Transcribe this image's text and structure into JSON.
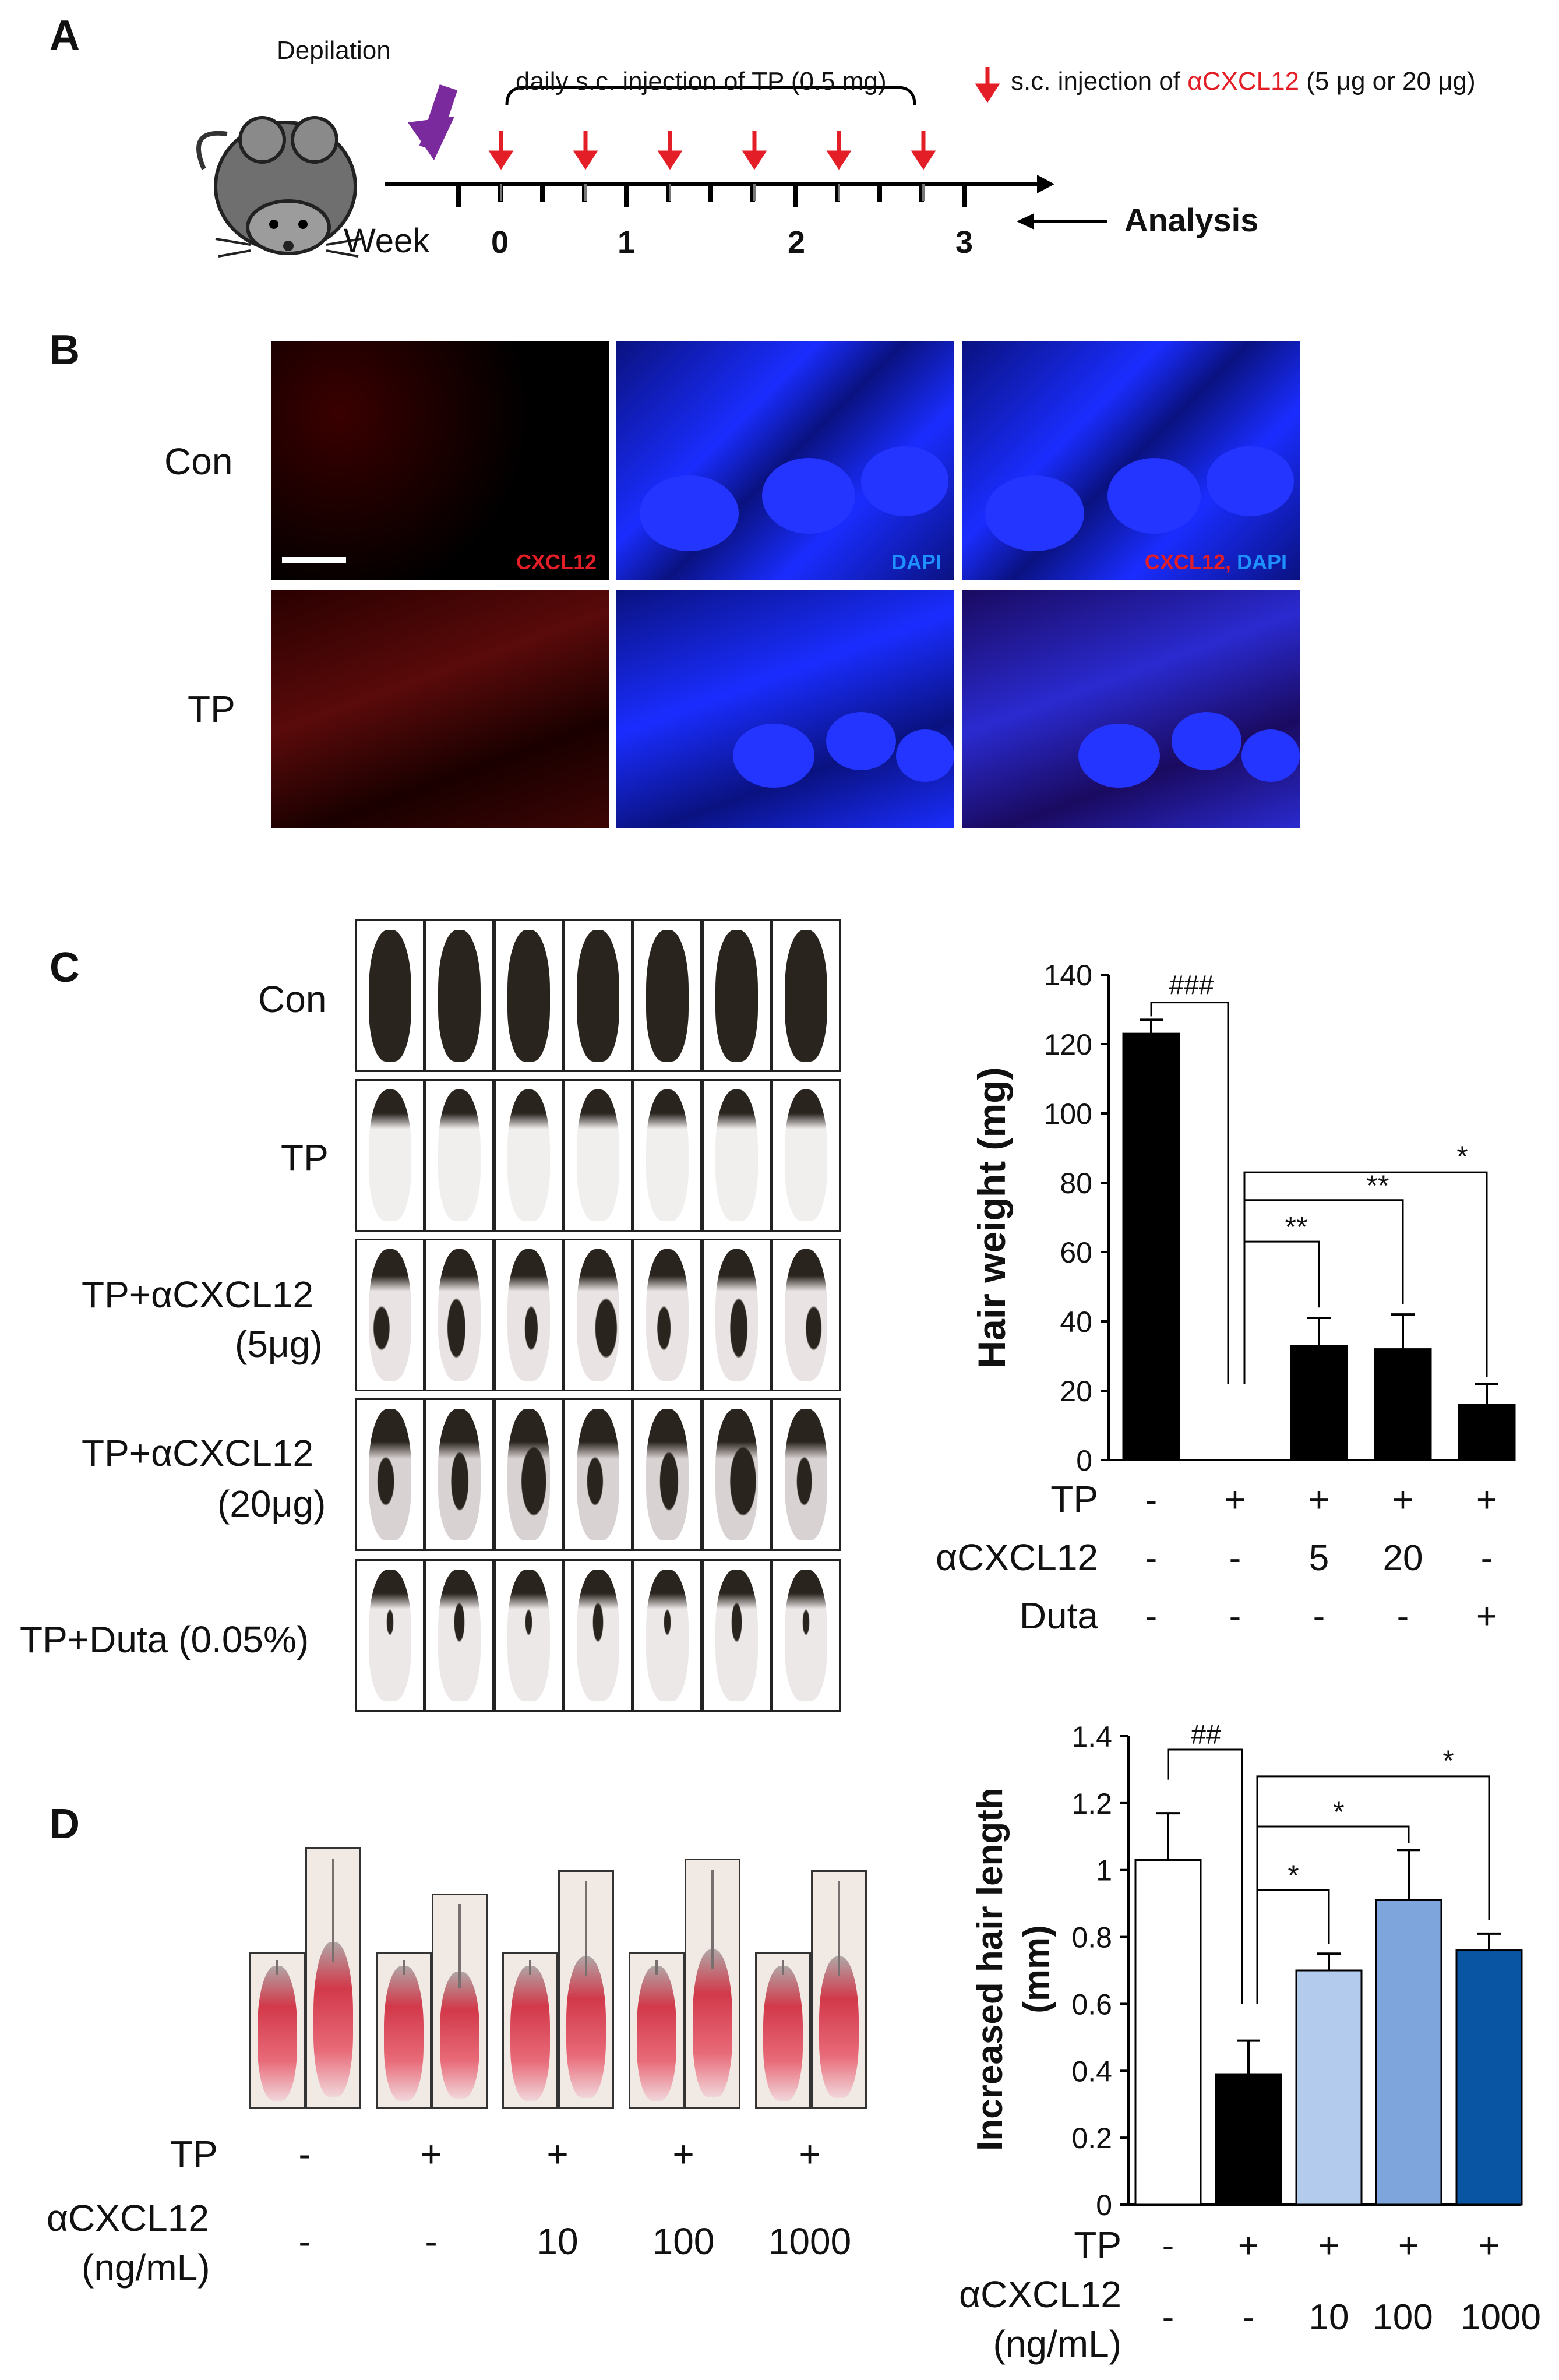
{
  "panels": {
    "A": {
      "letter": "A",
      "depilation": "Depilation",
      "week": "Week",
      "tp_injection": "daily s.c. injection of TP (0.5 mg)",
      "cxcl_prefix": "s.c. injection of ",
      "cxcl_name": "αCXCL12",
      "cxcl_suffix": " (5 μg or 20 μg)",
      "analysis": "Analysis",
      "week_ticks": [
        "0",
        "1",
        "2",
        "3"
      ]
    },
    "B": {
      "letter": "B",
      "rows": [
        "Con",
        "TP"
      ],
      "tag_cxcl": "CXCL12",
      "tag_dapi": "DAPI",
      "tag_merge_a": "CXCL12",
      "tag_merge_sep": ", ",
      "tag_merge_b": "DAPI"
    },
    "C": {
      "letter": "C",
      "rows": [
        "Con",
        "TP",
        "TP+αCXCL12",
        "(5μg)",
        "TP+αCXCL12",
        "(20μg)",
        "TP+Duta (0.05%)"
      ]
    },
    "D": {
      "letter": "D",
      "tp_label": "TP",
      "cxcl_label": "αCXCL12",
      "cxcl_unit": "(ng/mL)",
      "tp_values": [
        "-",
        "+",
        "+",
        "+",
        "+"
      ],
      "cxcl_values": [
        "-",
        "-",
        "10",
        "100",
        "1000"
      ]
    }
  },
  "colors": {
    "red": "#e41e26",
    "purple": "#7b2a9e",
    "dapi_blue": "#1a2dff",
    "bar_black": "#000000",
    "light_blue": "#b3cbec",
    "mid_blue": "#7ea6dc",
    "dark_blue": "#0a55a3"
  },
  "chart_data": [
    {
      "type": "bar",
      "ylabel": "Hair weight (mg)",
      "ylim": [
        0,
        140
      ],
      "yticks": [
        0,
        20,
        40,
        60,
        80,
        100,
        120,
        140
      ],
      "values": [
        123,
        0,
        33,
        32,
        16
      ],
      "errors": [
        4,
        0,
        8,
        10,
        6
      ],
      "rows": [
        {
          "name": "TP",
          "values": [
            "-",
            "+",
            "+",
            "+",
            "+"
          ]
        },
        {
          "name": "αCXCL12",
          "values": [
            "-",
            "-",
            "5",
            "20",
            "-"
          ]
        },
        {
          "name": "Duta",
          "values": [
            "-",
            "-",
            "-",
            "-",
            "+"
          ]
        }
      ],
      "significance": [
        "###",
        "**",
        "**",
        "*"
      ]
    },
    {
      "type": "bar",
      "ylabel_line1": "Increased hair length",
      "ylabel_line2": "(mm)",
      "ylim": [
        0,
        1.4
      ],
      "yticks": [
        "0",
        "0.2",
        "0.4",
        "0.6",
        "0.8",
        "1",
        "1.2",
        "1.4"
      ],
      "values": [
        1.03,
        0.39,
        0.7,
        0.91,
        0.76
      ],
      "errors": [
        0.14,
        0.1,
        0.05,
        0.15,
        0.05
      ],
      "rows": [
        {
          "name": "TP",
          "values": [
            "-",
            "+",
            "+",
            "+",
            "+"
          ]
        },
        {
          "name": "αCXCL12",
          "unit": "(ng/mL)",
          "values": [
            "-",
            "-",
            "10",
            "100",
            "1000"
          ]
        }
      ],
      "significance": [
        "##",
        "*",
        "*",
        "*"
      ]
    }
  ]
}
